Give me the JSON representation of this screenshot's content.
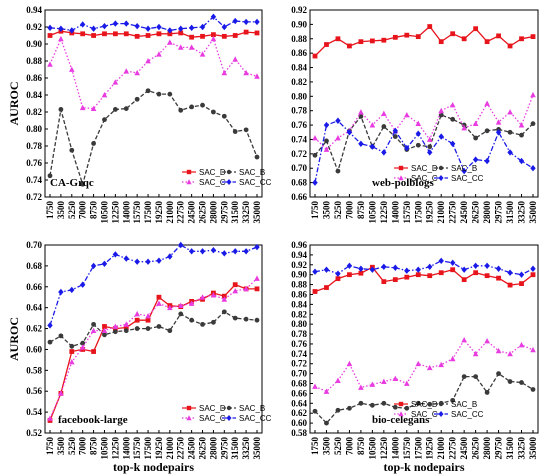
{
  "chart_data": [
    {
      "type": "line",
      "title": "CA-Grqc",
      "xlabel": "",
      "ylabel": "AUROC",
      "x": [
        1750,
        3500,
        5250,
        7000,
        8750,
        10500,
        12250,
        14000,
        15750,
        17500,
        19250,
        21000,
        22750,
        24500,
        26250,
        28000,
        29750,
        31500,
        33250,
        35000
      ],
      "ylim": [
        0.72,
        0.94
      ],
      "yticks": [
        "0.72",
        "0.74",
        "0.76",
        "0.78",
        "0.80",
        "0.82",
        "0.84",
        "0.86",
        "0.88",
        "0.90",
        "0.92",
        "0.94"
      ],
      "legend_position": "bottom-right",
      "grid": false,
      "series": [
        {
          "name": "SAC_D",
          "color": "#e8141c",
          "marker": "square",
          "values": [
            0.91,
            0.915,
            0.913,
            0.912,
            0.91,
            0.912,
            0.912,
            0.912,
            0.909,
            0.91,
            0.912,
            0.912,
            0.913,
            0.908,
            0.909,
            0.911,
            0.909,
            0.91,
            0.914,
            0.913
          ]
        },
        {
          "name": "SAC_B",
          "color": "#3a3a3a",
          "marker": "circle",
          "values": [
            0.745,
            0.823,
            0.775,
            0.735,
            0.783,
            0.811,
            0.823,
            0.824,
            0.835,
            0.845,
            0.841,
            0.841,
            0.822,
            0.826,
            0.828,
            0.82,
            0.815,
            0.797,
            0.799,
            0.767
          ]
        },
        {
          "name": "SAC_C",
          "color": "#e83ce0",
          "marker": "triangle",
          "values": [
            0.876,
            0.906,
            0.87,
            0.825,
            0.824,
            0.84,
            0.855,
            0.868,
            0.866,
            0.88,
            0.888,
            0.902,
            0.896,
            0.896,
            0.888,
            0.906,
            0.866,
            0.882,
            0.866,
            0.862
          ]
        },
        {
          "name": "SAC_CC",
          "color": "#1a1ae8",
          "marker": "diamond",
          "values": [
            0.919,
            0.918,
            0.916,
            0.923,
            0.918,
            0.921,
            0.924,
            0.924,
            0.921,
            0.918,
            0.92,
            0.916,
            0.918,
            0.919,
            0.92,
            0.932,
            0.92,
            0.927,
            0.926,
            0.926
          ]
        }
      ]
    },
    {
      "type": "line",
      "title": "web-polblogs",
      "xlabel": "",
      "ylabel": "",
      "x": [
        1750,
        3500,
        5250,
        7000,
        8750,
        10500,
        12250,
        14000,
        15750,
        17500,
        19250,
        21000,
        22750,
        24500,
        26250,
        28000,
        29750,
        31500,
        33250,
        35000
      ],
      "ylim": [
        0.66,
        0.92
      ],
      "yticks": [
        "0.66",
        "0.68",
        "0.70",
        "0.72",
        "0.74",
        "0.76",
        "0.78",
        "0.80",
        "0.82",
        "0.84",
        "0.86",
        "0.88",
        "0.90",
        "0.92"
      ],
      "legend_position": "lower-center",
      "grid": false,
      "series": [
        {
          "name": "SAC_D",
          "color": "#e8141c",
          "marker": "square",
          "values": [
            0.856,
            0.872,
            0.88,
            0.87,
            0.876,
            0.877,
            0.878,
            0.882,
            0.885,
            0.883,
            0.897,
            0.876,
            0.887,
            0.88,
            0.894,
            0.876,
            0.884,
            0.87,
            0.88,
            0.883
          ]
        },
        {
          "name": "SAC_B",
          "color": "#3a3a3a",
          "marker": "circle",
          "values": [
            0.718,
            0.738,
            0.696,
            0.752,
            0.772,
            0.73,
            0.758,
            0.744,
            0.726,
            0.732,
            0.73,
            0.774,
            0.768,
            0.76,
            0.742,
            0.752,
            0.754,
            0.75,
            0.746,
            0.762
          ]
        },
        {
          "name": "SAC_C",
          "color": "#e83ce0",
          "marker": "triangle",
          "values": [
            0.742,
            0.726,
            0.742,
            0.752,
            0.778,
            0.76,
            0.776,
            0.752,
            0.774,
            0.762,
            0.74,
            0.78,
            0.788,
            0.756,
            0.762,
            0.79,
            0.764,
            0.778,
            0.76,
            0.802
          ]
        },
        {
          "name": "SAC_CC",
          "color": "#1a1ae8",
          "marker": "diamond",
          "values": [
            0.68,
            0.76,
            0.766,
            0.75,
            0.734,
            0.73,
            0.722,
            0.752,
            0.728,
            0.748,
            0.722,
            0.744,
            0.734,
            0.696,
            0.712,
            0.71,
            0.75,
            0.722,
            0.71,
            0.7
          ]
        }
      ]
    },
    {
      "type": "line",
      "title": "facebook-large",
      "xlabel": "top-k nodepairs",
      "ylabel": "AUROC",
      "x": [
        1750,
        3500,
        5250,
        7000,
        8750,
        10500,
        12250,
        14000,
        15750,
        17500,
        19250,
        21000,
        22750,
        24500,
        26250,
        28000,
        29750,
        31500,
        33250,
        35000
      ],
      "ylim": [
        0.52,
        0.7
      ],
      "yticks": [
        "0.52",
        "0.54",
        "0.56",
        "0.58",
        "0.60",
        "0.62",
        "0.64",
        "0.66",
        "0.68",
        "0.70"
      ],
      "legend_position": "bottom-right",
      "grid": false,
      "series": [
        {
          "name": "SAC_D",
          "color": "#e8141c",
          "marker": "square",
          "values": [
            0.532,
            0.558,
            0.598,
            0.6,
            0.598,
            0.622,
            0.62,
            0.621,
            0.628,
            0.628,
            0.65,
            0.642,
            0.641,
            0.646,
            0.648,
            0.654,
            0.651,
            0.662,
            0.658,
            0.658
          ]
        },
        {
          "name": "SAC_B",
          "color": "#3a3a3a",
          "marker": "circle",
          "values": [
            0.607,
            0.613,
            0.603,
            0.606,
            0.624,
            0.614,
            0.617,
            0.618,
            0.62,
            0.62,
            0.622,
            0.618,
            0.634,
            0.628,
            0.624,
            0.626,
            0.636,
            0.63,
            0.629,
            0.628
          ]
        },
        {
          "name": "SAC_C",
          "color": "#e83ce0",
          "marker": "triangle",
          "values": [
            0.534,
            0.558,
            0.588,
            0.602,
            0.618,
            0.618,
            0.622,
            0.624,
            0.634,
            0.632,
            0.644,
            0.64,
            0.642,
            0.644,
            0.65,
            0.652,
            0.648,
            0.656,
            0.658,
            0.668
          ]
        },
        {
          "name": "SAC_CC",
          "color": "#1a1ae8",
          "marker": "diamond",
          "values": [
            0.623,
            0.655,
            0.657,
            0.662,
            0.68,
            0.682,
            0.691,
            0.687,
            0.684,
            0.684,
            0.685,
            0.689,
            0.7,
            0.694,
            0.694,
            0.695,
            0.692,
            0.694,
            0.694,
            0.698
          ]
        }
      ]
    },
    {
      "type": "line",
      "title": "bio-celegans",
      "xlabel": "top-k nodepairs",
      "ylabel": "",
      "x": [
        1750,
        3500,
        5250,
        7000,
        8750,
        10500,
        12250,
        14000,
        15750,
        17500,
        19250,
        21000,
        22750,
        24500,
        26250,
        28000,
        29750,
        31500,
        33250,
        35000
      ],
      "ylim": [
        0.58,
        0.96
      ],
      "yticks": [
        "0.58",
        "0.60",
        "0.62",
        "0.64",
        "0.66",
        "0.68",
        "0.70",
        "0.72",
        "0.74",
        "0.76",
        "0.78",
        "0.80",
        "0.82",
        "0.84",
        "0.86",
        "0.88",
        "0.90",
        "0.92",
        "0.94",
        "0.96"
      ],
      "legend_position": "lower-center",
      "grid": false,
      "series": [
        {
          "name": "SAC_D",
          "color": "#e8141c",
          "marker": "square",
          "values": [
            0.866,
            0.874,
            0.892,
            0.9,
            0.903,
            0.915,
            0.886,
            0.89,
            0.895,
            0.9,
            0.898,
            0.904,
            0.91,
            0.89,
            0.904,
            0.898,
            0.893,
            0.879,
            0.882,
            0.9
          ]
        },
        {
          "name": "SAC_B",
          "color": "#3a3a3a",
          "marker": "circle",
          "values": [
            0.624,
            0.6,
            0.626,
            0.63,
            0.64,
            0.636,
            0.64,
            0.632,
            0.63,
            0.64,
            0.638,
            0.64,
            0.646,
            0.694,
            0.694,
            0.662,
            0.7,
            0.684,
            0.682,
            0.668
          ]
        },
        {
          "name": "SAC_C",
          "color": "#e83ce0",
          "marker": "triangle",
          "values": [
            0.674,
            0.664,
            0.686,
            0.72,
            0.672,
            0.678,
            0.684,
            0.69,
            0.68,
            0.72,
            0.712,
            0.718,
            0.73,
            0.768,
            0.74,
            0.766,
            0.746,
            0.74,
            0.758,
            0.748
          ]
        },
        {
          "name": "SAC_CC",
          "color": "#1a1ae8",
          "marker": "diamond",
          "values": [
            0.906,
            0.91,
            0.902,
            0.918,
            0.912,
            0.91,
            0.916,
            0.914,
            0.908,
            0.91,
            0.916,
            0.928,
            0.924,
            0.91,
            0.918,
            0.918,
            0.912,
            0.904,
            0.9,
            0.912
          ]
        }
      ]
    }
  ]
}
